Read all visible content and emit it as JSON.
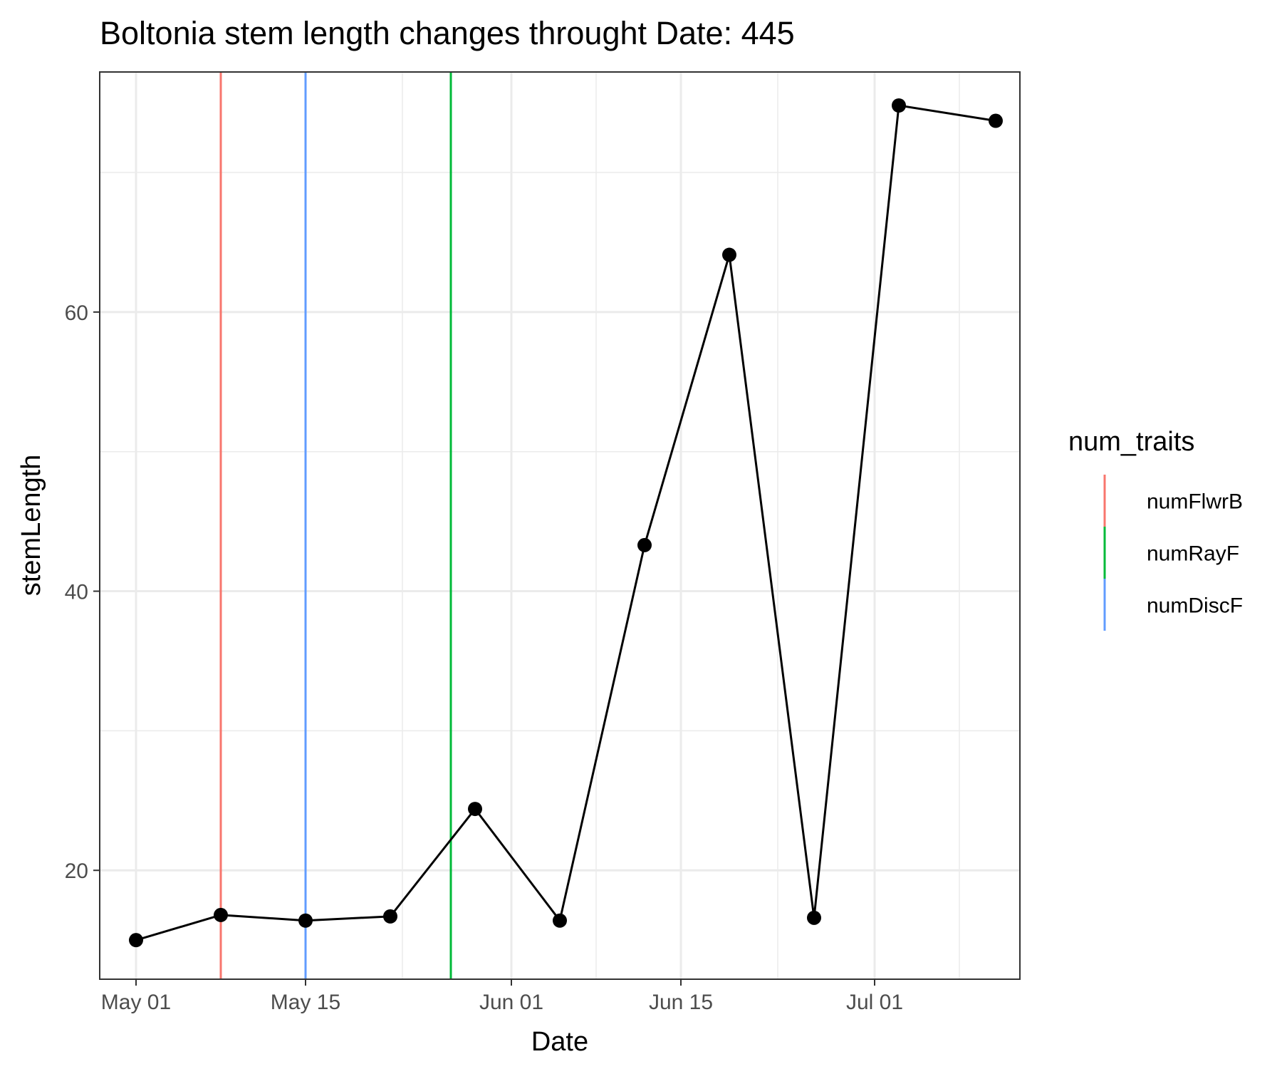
{
  "chart_data": {
    "type": "line",
    "title": "Boltonia stem length changes throught Date:  445",
    "xlabel": "Date",
    "ylabel": "stemLength",
    "x_type": "date",
    "xlim": [
      "2023-04-28",
      "2023-07-13"
    ],
    "ylim": [
      12.2,
      77.2
    ],
    "x_ticks": [
      {
        "date": "2023-05-01",
        "label": "May 01"
      },
      {
        "date": "2023-05-15",
        "label": "May 15"
      },
      {
        "date": "2023-06-01",
        "label": "Jun 01"
      },
      {
        "date": "2023-06-15",
        "label": "Jun 15"
      },
      {
        "date": "2023-07-01",
        "label": "Jul 01"
      }
    ],
    "x_minor_ticks": [
      "2023-05-08",
      "2023-05-23",
      "2023-06-08",
      "2023-06-23",
      "2023-07-08"
    ],
    "y_ticks": [
      20,
      40,
      60
    ],
    "y_minor_ticks": [
      30,
      50,
      70
    ],
    "grid": true,
    "series": [
      {
        "color": "#000000",
        "points": [
          {
            "x": "2023-05-01",
            "y": 15.0
          },
          {
            "x": "2023-05-08",
            "y": 16.8
          },
          {
            "x": "2023-05-15",
            "y": 16.4
          },
          {
            "x": "2023-05-22",
            "y": 16.7
          },
          {
            "x": "2023-05-29",
            "y": 24.4
          },
          {
            "x": "2023-06-05",
            "y": 16.4
          },
          {
            "x": "2023-06-12",
            "y": 43.3
          },
          {
            "x": "2023-06-19",
            "y": 64.1
          },
          {
            "x": "2023-06-26",
            "y": 16.6
          },
          {
            "x": "2023-07-03",
            "y": 74.8
          },
          {
            "x": "2023-07-11",
            "y": 73.7
          }
        ]
      }
    ],
    "vlines": [
      {
        "name": "numFlwrB",
        "x": "2023-05-08",
        "color": "#F8766D"
      },
      {
        "name": "numDiscF",
        "x": "2023-05-15",
        "color": "#619CFF"
      },
      {
        "name": "numRayF",
        "x": "2023-05-27",
        "color": "#00BA38"
      }
    ],
    "legend": {
      "title": "num_traits",
      "position": "right",
      "items": [
        {
          "label": "numFlwrB",
          "color": "#F8766D"
        },
        {
          "label": "numRayF",
          "color": "#00BA38"
        },
        {
          "label": "numDiscF",
          "color": "#619CFF"
        }
      ]
    }
  }
}
